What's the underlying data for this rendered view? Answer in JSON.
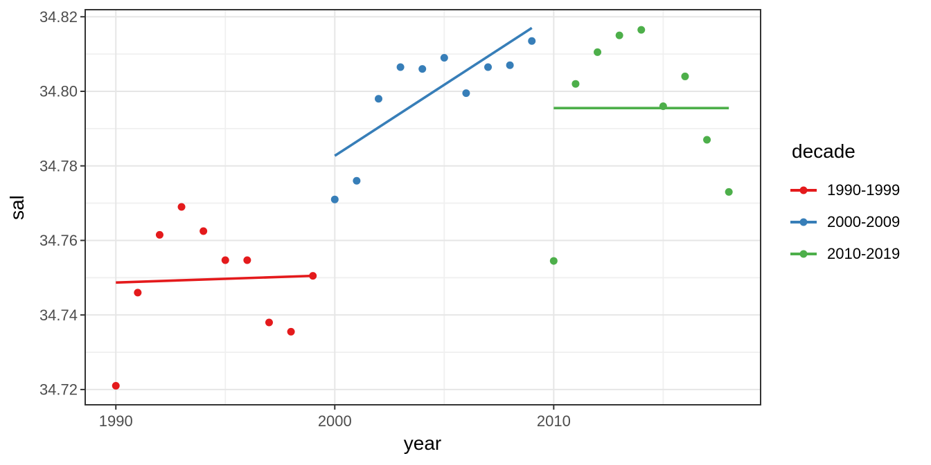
{
  "chart_data": {
    "type": "scatter",
    "title": "",
    "xlabel": "year",
    "ylabel": "sal",
    "x_domain": [
      1988.6,
      2019.45
    ],
    "y_domain": [
      34.7159,
      34.8219
    ],
    "grid": true,
    "x_axis": {
      "tick_values": [
        1990,
        2000,
        2010
      ],
      "tick_labels": [
        "1990",
        "2000",
        "2010"
      ],
      "minor_ticks": [
        1995,
        2005,
        2015
      ]
    },
    "y_axis": {
      "tick_values": [
        34.82,
        34.8,
        34.78,
        34.76,
        34.74,
        34.72
      ],
      "tick_labels": [
        "34.82",
        "34.80",
        "34.78",
        "34.76",
        "34.74",
        "34.72"
      ],
      "minor_ticks": [
        34.81,
        34.79,
        34.77,
        34.75,
        34.73
      ]
    },
    "legend": {
      "title": "decade",
      "position": "right"
    },
    "series": [
      {
        "name": "1990-1999",
        "color": "#E41A1C",
        "x": [
          1990,
          1991,
          1992,
          1993,
          1994,
          1995,
          1996,
          1997,
          1998,
          1999
        ],
        "y": [
          34.721,
          34.746,
          34.7615,
          34.769,
          34.7625,
          34.7547,
          34.7547,
          34.738,
          34.7355,
          34.7505
        ],
        "trend": {
          "x": [
            1990,
            1999
          ],
          "y": [
            34.7487,
            34.7505
          ]
        }
      },
      {
        "name": "2000-2009",
        "color": "#377EB8",
        "x": [
          2000,
          2001,
          2002,
          2003,
          2004,
          2005,
          2006,
          2007,
          2008,
          2009
        ],
        "y": [
          34.771,
          34.776,
          34.798,
          34.8065,
          34.806,
          34.809,
          34.7995,
          34.8065,
          34.807,
          34.8135
        ],
        "trend": {
          "x": [
            2000,
            2009
          ],
          "y": [
            34.7827,
            34.817
          ]
        }
      },
      {
        "name": "2010-2019",
        "color": "#4DAF4A",
        "x": [
          2010,
          2011,
          2012,
          2013,
          2014,
          2015,
          2016,
          2017,
          2018
        ],
        "y": [
          34.7545,
          34.802,
          34.8105,
          34.815,
          34.8165,
          34.796,
          34.804,
          34.787,
          34.773
        ],
        "trend": {
          "x": [
            2010,
            2018
          ],
          "y": [
            34.7955,
            34.7955
          ]
        }
      }
    ],
    "style": {
      "panel_border_color": "#333333",
      "major_grid_color": "#e6e6e6",
      "minor_grid_color": "#f0f0f0",
      "tick_label_color": "#4d4d4d"
    }
  }
}
